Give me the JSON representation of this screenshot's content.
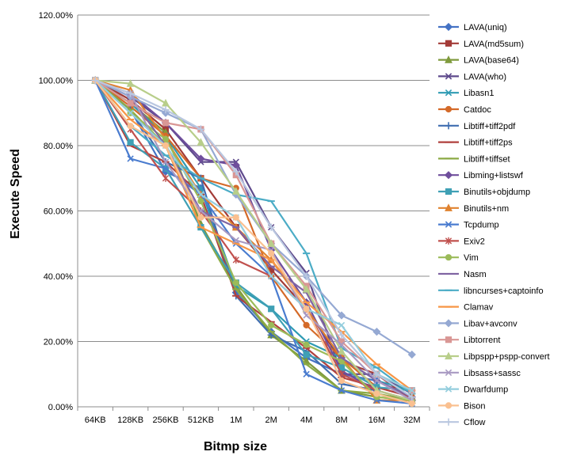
{
  "chart_data": {
    "type": "line",
    "title": "",
    "xlabel": "Bitmp size",
    "ylabel": "Execute Speed",
    "categories": [
      "64KB",
      "128KB",
      "256KB",
      "512KB",
      "1M",
      "2M",
      "4M",
      "8M",
      "16M",
      "32M"
    ],
    "ylim": [
      0,
      120
    ],
    "yticks": [
      "0.00%",
      "20.00%",
      "40.00%",
      "60.00%",
      "80.00%",
      "100.00%",
      "120.00%"
    ],
    "grid": true,
    "legend_position": "right",
    "series": [
      {
        "name": "LAVA(uniq)",
        "color": "#4472C4",
        "marker": "diamond",
        "values": [
          100,
          91,
          72,
          67,
          35,
          23,
          15,
          10,
          8,
          3
        ]
      },
      {
        "name": "LAVA(md5sum)",
        "color": "#A33B37",
        "marker": "square",
        "values": [
          100,
          94,
          85,
          70,
          55,
          42,
          30,
          14,
          10,
          2
        ]
      },
      {
        "name": "LAVA(base64)",
        "color": "#7F9A3C",
        "marker": "triangle",
        "values": [
          100,
          93,
          84,
          56,
          37,
          22,
          14,
          5,
          3,
          2
        ]
      },
      {
        "name": "LAVA(who)",
        "color": "#5E4A8C",
        "marker": "x",
        "values": [
          100,
          95,
          87,
          75,
          75,
          55,
          41,
          10,
          10,
          4
        ]
      },
      {
        "name": "Libasn1",
        "color": "#2E9BB3",
        "marker": "x",
        "values": [
          100,
          93,
          83,
          67,
          37,
          30,
          20,
          15,
          8,
          5
        ]
      },
      {
        "name": "Catdoc",
        "color": "#D46A29",
        "marker": "circle",
        "values": [
          100,
          92,
          83,
          70,
          67,
          40,
          25,
          15,
          6,
          3
        ]
      },
      {
        "name": "Libtiff+tiff2pdf",
        "color": "#3F6DB0",
        "marker": "plus",
        "values": [
          100,
          91,
          75,
          70,
          34,
          22,
          17,
          7,
          5,
          2
        ]
      },
      {
        "name": "Libtiff+tiff2ps",
        "color": "#B0413E",
        "marker": "dash",
        "values": [
          100,
          80,
          75,
          65,
          34,
          26,
          18,
          9,
          6,
          3
        ]
      },
      {
        "name": "Libtiff+tiffset",
        "color": "#8BAA45",
        "marker": "dash",
        "values": [
          100,
          91,
          80,
          55,
          36,
          23,
          13,
          5,
          4,
          2
        ]
      },
      {
        "name": "Libming+listswf",
        "color": "#6F4E9C",
        "marker": "diamond",
        "values": [
          100,
          96,
          87,
          76,
          74,
          48,
          32,
          11,
          5,
          2
        ]
      },
      {
        "name": "Binutils+objdump",
        "color": "#3FA0B5",
        "marker": "square",
        "values": [
          100,
          81,
          73,
          55,
          38,
          30,
          16,
          12,
          6,
          5
        ]
      },
      {
        "name": "Binutils+nm",
        "color": "#E0822F",
        "marker": "triangle",
        "values": [
          100,
          97,
          82,
          65,
          55,
          45,
          30,
          15,
          2,
          2
        ]
      },
      {
        "name": "Tcpdump",
        "color": "#4A7CCF",
        "marker": "x",
        "values": [
          100,
          76,
          73,
          65,
          50,
          40,
          10,
          5,
          2,
          1
        ]
      },
      {
        "name": "Exiv2",
        "color": "#C0504D",
        "marker": "asterisk",
        "values": [
          100,
          85,
          70,
          60,
          45,
          40,
          30,
          10,
          5,
          2
        ]
      },
      {
        "name": "Vim",
        "color": "#9BBB59",
        "marker": "circle",
        "values": [
          100,
          90,
          82,
          63,
          38,
          25,
          19,
          14,
          3,
          2
        ]
      },
      {
        "name": "Nasm",
        "color": "#8064A2",
        "marker": "dash",
        "values": [
          100,
          95,
          80,
          60,
          55,
          43,
          35,
          15,
          8,
          3
        ]
      },
      {
        "name": "libncurses+captoinfo",
        "color": "#4BACC6",
        "marker": "dash",
        "values": [
          100,
          86,
          77,
          70,
          65,
          63,
          47,
          18,
          12,
          4
        ]
      },
      {
        "name": "Clamav",
        "color": "#F79646",
        "marker": "dash",
        "values": [
          100,
          88,
          80,
          55,
          50,
          45,
          32,
          23,
          13,
          5
        ]
      },
      {
        "name": "Libav+avconv",
        "color": "#95A9D3",
        "marker": "diamond",
        "values": [
          100,
          95,
          90,
          85,
          65,
          50,
          40,
          28,
          23,
          16
        ]
      },
      {
        "name": "Libtorrent",
        "color": "#D99795",
        "marker": "square",
        "values": [
          100,
          93,
          87,
          85,
          71,
          50,
          37,
          20,
          10,
          5
        ]
      },
      {
        "name": "Libpspp+pspp-convert",
        "color": "#B8CE8A",
        "marker": "triangle",
        "values": [
          100,
          99,
          93,
          81,
          66,
          50,
          36,
          17,
          5,
          2
        ]
      },
      {
        "name": "Libsass+sassc",
        "color": "#A899C2",
        "marker": "x",
        "values": [
          100,
          96,
          75,
          60,
          51,
          48,
          28,
          19,
          8,
          2
        ]
      },
      {
        "name": "Dwarfdump",
        "color": "#93CDDD",
        "marker": "x",
        "values": [
          100,
          90,
          80,
          65,
          58,
          40,
          30,
          25,
          10,
          5
        ]
      },
      {
        "name": "Bison",
        "color": "#FAC090",
        "marker": "circle",
        "values": [
          100,
          86,
          80,
          58,
          58,
          47,
          30,
          8,
          4,
          1
        ]
      },
      {
        "name": "Cflow",
        "color": "#B9C7E0",
        "marker": "plus",
        "values": [
          100,
          96,
          91,
          85,
          72,
          55,
          40,
          22,
          10,
          3
        ]
      }
    ]
  }
}
